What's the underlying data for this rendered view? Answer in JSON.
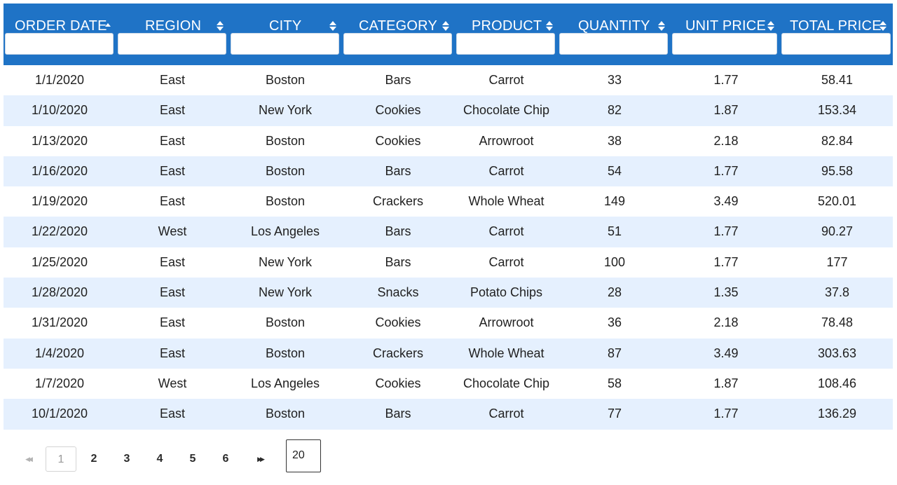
{
  "columns": [
    {
      "key": "order_date",
      "label": "ORDER DATE",
      "sort": "asc"
    },
    {
      "key": "region",
      "label": "REGION",
      "sort": "none"
    },
    {
      "key": "city",
      "label": "CITY",
      "sort": "none"
    },
    {
      "key": "category",
      "label": "CATEGORY",
      "sort": "none"
    },
    {
      "key": "product",
      "label": "PRODUCT",
      "sort": "none"
    },
    {
      "key": "quantity",
      "label": "QUANTITY",
      "sort": "none"
    },
    {
      "key": "unit_price",
      "label": "UNIT PRICE",
      "sort": "none"
    },
    {
      "key": "total_price",
      "label": "TOTAL PRICE",
      "sort": "none"
    }
  ],
  "filters": [
    "",
    "",
    "",
    "",
    "",
    "",
    "",
    ""
  ],
  "rows": [
    [
      "1/1/2020",
      "East",
      "Boston",
      "Bars",
      "Carrot",
      "33",
      "1.77",
      "58.41"
    ],
    [
      "1/10/2020",
      "East",
      "New York",
      "Cookies",
      "Chocolate Chip",
      "82",
      "1.87",
      "153.34"
    ],
    [
      "1/13/2020",
      "East",
      "Boston",
      "Cookies",
      "Arrowroot",
      "38",
      "2.18",
      "82.84"
    ],
    [
      "1/16/2020",
      "East",
      "Boston",
      "Bars",
      "Carrot",
      "54",
      "1.77",
      "95.58"
    ],
    [
      "1/19/2020",
      "East",
      "Boston",
      "Crackers",
      "Whole Wheat",
      "149",
      "3.49",
      "520.01"
    ],
    [
      "1/22/2020",
      "West",
      "Los Angeles",
      "Bars",
      "Carrot",
      "51",
      "1.77",
      "90.27"
    ],
    [
      "1/25/2020",
      "East",
      "New York",
      "Bars",
      "Carrot",
      "100",
      "1.77",
      "177"
    ],
    [
      "1/28/2020",
      "East",
      "New York",
      "Snacks",
      "Potato Chips",
      "28",
      "1.35",
      "37.8"
    ],
    [
      "1/31/2020",
      "East",
      "Boston",
      "Cookies",
      "Arrowroot",
      "36",
      "2.18",
      "78.48"
    ],
    [
      "1/4/2020",
      "East",
      "Boston",
      "Crackers",
      "Whole Wheat",
      "87",
      "3.49",
      "303.63"
    ],
    [
      "1/7/2020",
      "West",
      "Los Angeles",
      "Cookies",
      "Chocolate Chip",
      "58",
      "1.87",
      "108.46"
    ],
    [
      "10/1/2020",
      "East",
      "Boston",
      "Bars",
      "Carrot",
      "77",
      "1.77",
      "136.29"
    ]
  ],
  "pagination": {
    "first_icon": "first-page-icon",
    "last_icon": "last-page-icon",
    "pages": [
      "1",
      "2",
      "3",
      "4",
      "5",
      "6"
    ],
    "current_page": "1",
    "page_size": "20"
  },
  "colors": {
    "header_bg": "#1f73c6",
    "row_alt_bg": "#e5f0fe",
    "header_text": "#ffffff"
  }
}
